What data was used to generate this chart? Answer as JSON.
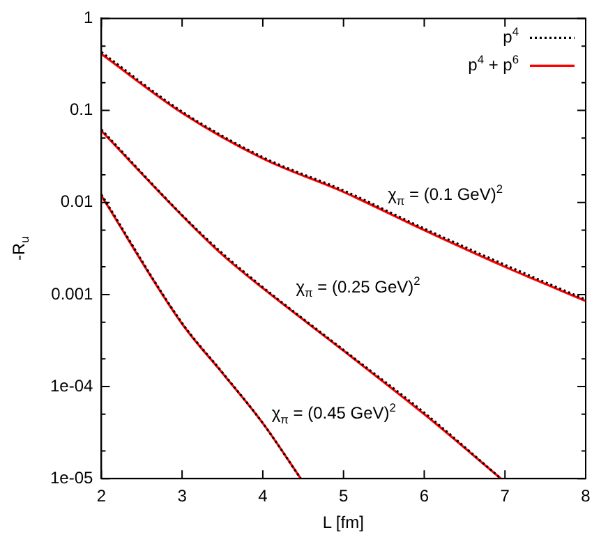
{
  "chart_data": {
    "type": "line",
    "xlabel": "L [fm]",
    "ylabel": "-R$_{u}$",
    "log": "y",
    "grid": false,
    "legend": "top right",
    "marker": "none",
    "xlim": [
      2,
      8
    ],
    "xticks": [
      2,
      3,
      4,
      5,
      6,
      7,
      8
    ],
    "ylim": [
      1e-05,
      1
    ],
    "yticks": [
      {
        "value": 1e-05,
        "label": "1e-05"
      },
      {
        "value": 2e-05,
        "label": null
      },
      {
        "value": 5e-05,
        "label": null
      },
      {
        "value": 0.0001,
        "label": "1e-04"
      },
      {
        "value": 0.0002,
        "label": null
      },
      {
        "value": 0.0005,
        "label": null
      },
      0.001,
      {
        "value": 0.002,
        "label": null
      },
      {
        "value": 0.005,
        "label": null
      },
      0.01,
      {
        "value": 0.02,
        "label": null
      },
      {
        "value": 0.05,
        "label": null
      },
      0.1,
      {
        "value": 0.2,
        "label": null
      },
      {
        "value": 0.5,
        "label": null
      },
      1
    ],
    "series": [
      {
        "name": "p$^{4}$",
        "color": "#000000",
        "line_style": "dotted",
        "x": [
          2,
          3,
          4,
          5,
          6,
          7,
          8
        ],
        "values": [
          0.43,
          0.097,
          0.031,
          0.0135,
          0.0052,
          0.0021,
          0.00088
        ]
      },
      {
        "color": "#000000",
        "line_style": "dotted",
        "x": [
          2,
          3,
          3.5,
          4,
          5,
          6,
          6.95
        ],
        "values": [
          0.062,
          0.0073,
          0.0028,
          0.0012,
          0.00025,
          5.2e-05,
          1e-05
        ]
      },
      {
        "color": "#000000",
        "line_style": "dotted",
        "x": [
          2,
          3,
          3.5,
          4,
          4.47
        ],
        "values": [
          0.0122,
          0.00049,
          0.000142,
          4e-05,
          1e-05
        ]
      },
      {
        "name": "p$^{4}$ + p$^{6}$",
        "color": "#ff0000",
        "line_style": "solid",
        "x": [
          2,
          3,
          4,
          5,
          6,
          7,
          8
        ],
        "values": [
          0.41,
          0.094,
          0.03,
          0.013,
          0.005,
          0.002,
          0.00085
        ]
      },
      {
        "color": "#ff0000",
        "line_style": "solid",
        "x": [
          2,
          3,
          3.5,
          4,
          5,
          6,
          6.95
        ],
        "values": [
          0.06,
          0.0072,
          0.0027,
          0.00117,
          0.000245,
          5e-05,
          1e-05
        ]
      },
      {
        "color": "#ff0000",
        "line_style": "solid",
        "x": [
          2,
          3,
          3.5,
          4,
          4.47
        ],
        "values": [
          0.0118,
          0.00048,
          0.00014,
          4e-05,
          1e-05
        ]
      }
    ],
    "annotations": [
      "χ$_{π}$ = (0.1 GeV)$^{2}$",
      "χ$_{π}$ = (0.25 GeV)$^{2}$",
      "χ$_{π}$ = (0.45 GeV)$^{2}$"
    ]
  }
}
